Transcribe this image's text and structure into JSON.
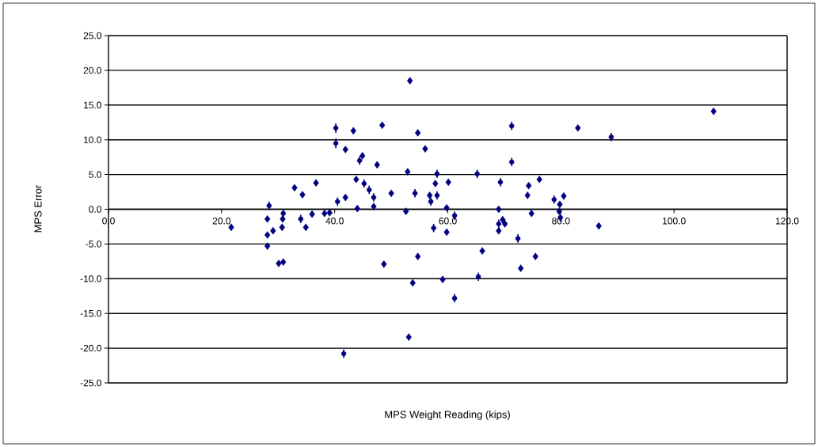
{
  "chart_data": {
    "type": "scatter",
    "xlabel": "MPS Weight Reading (kips)",
    "ylabel": "MPS Error",
    "xlim": [
      0,
      120
    ],
    "ylim": [
      -25,
      25
    ],
    "xticks": [
      {
        "value": 0,
        "label": "0.0"
      },
      {
        "value": 20,
        "label": "20.0"
      },
      {
        "value": 40,
        "label": "40.0"
      },
      {
        "value": 60,
        "label": "60.0"
      },
      {
        "value": 80,
        "label": "80.0"
      },
      {
        "value": 100,
        "label": "100.0"
      },
      {
        "value": 120,
        "label": "120.0"
      }
    ],
    "yticks": [
      {
        "value": -25,
        "label": "-25.0"
      },
      {
        "value": -20,
        "label": "-20.0"
      },
      {
        "value": -15,
        "label": "-15.0"
      },
      {
        "value": -10,
        "label": "-10.0"
      },
      {
        "value": -5,
        "label": "-5.0"
      },
      {
        "value": 0,
        "label": "0.0"
      },
      {
        "value": 5,
        "label": "5.0"
      },
      {
        "value": 10,
        "label": "10.0"
      },
      {
        "value": 15,
        "label": "15.0"
      },
      {
        "value": 20,
        "label": "20.0"
      },
      {
        "value": 25,
        "label": "25.0"
      }
    ],
    "grid": "y",
    "series": [
      {
        "color": "#000080",
        "marker": "diamond",
        "x": [
          21.7,
          28.1,
          28.1,
          28.1,
          29.1,
          30.8,
          30.7,
          30.1,
          30.9,
          32.9,
          34.3,
          36.7,
          36.0,
          34.9,
          38.2,
          39.1,
          41.9,
          43.3,
          44.9,
          43.8,
          41.9,
          44.0,
          53.3,
          48.4,
          54.7,
          56.0,
          47.5,
          52.9,
          57.8,
          60.1,
          56.8,
          50.0,
          46.9,
          52.6,
          59.8,
          69.0,
          59.8,
          66.1,
          54.7,
          48.7,
          53.8,
          59.1,
          53.1,
          83.0,
          76.2,
          74.3,
          74.1,
          80.5,
          79.8,
          79.7,
          74.8,
          69.7,
          70.1,
          69.0,
          86.7,
          75.5,
          72.9,
          107.0
        ],
        "values": [
          -2.6,
          -1.4,
          -3.7,
          -5.3,
          -3.1,
          -1.4,
          -2.6,
          -7.8,
          -7.6,
          3.1,
          2.1,
          3.8,
          -0.7,
          -2.6,
          -0.6,
          -0.5,
          8.6,
          11.3,
          7.7,
          4.3,
          1.7,
          0.1,
          18.5,
          12.1,
          11.0,
          8.7,
          6.4,
          5.4,
          3.7,
          3.9,
          2.0,
          2.3,
          0.4,
          -0.3,
          0.2,
          0.0,
          -3.3,
          -6.0,
          -6.8,
          -7.9,
          -10.6,
          -10.1,
          -18.4,
          11.7,
          4.3,
          3.4,
          2.0,
          1.9,
          0.7,
          -0.3,
          -0.6,
          -1.5,
          -2.1,
          -3.1,
          -2.4,
          -6.8,
          -8.5,
          14.1
        ]
      },
      {
        "color": "#000080",
        "marker": "none",
        "errors": [
          0.7,
          0.7,
          0.6,
          0.6,
          0.6,
          0.6,
          0.6,
          0.6,
          0.6,
          0.6,
          0.6,
          0.6,
          0.6,
          0.6,
          0.6,
          0.6,
          0.6,
          0.6,
          0.6,
          0.6,
          0.6,
          0.6,
          0.6,
          0.6,
          0.6,
          0.6,
          0.6,
          0.6
        ],
        "x": [
          40.2,
          40.2,
          28.4,
          30.9,
          34.0,
          40.5,
          41.6,
          44.4,
          45.2,
          46.1,
          46.9,
          54.2,
          58.1,
          58.1,
          57.0,
          61.2,
          57.5,
          65.2,
          69.3,
          69.0,
          65.4,
          61.2,
          71.3,
          71.3,
          88.9,
          78.8,
          79.9,
          72.4
        ],
        "values": [
          11.7,
          9.5,
          0.5,
          -0.6,
          -1.4,
          1.1,
          -20.8,
          7.0,
          3.7,
          2.8,
          1.7,
          2.3,
          5.1,
          2.0,
          1.1,
          -0.9,
          -2.7,
          5.1,
          3.9,
          -2.1,
          -9.7,
          -12.8,
          12.0,
          6.8,
          10.4,
          1.4,
          -1.2,
          -4.2
        ]
      }
    ]
  }
}
